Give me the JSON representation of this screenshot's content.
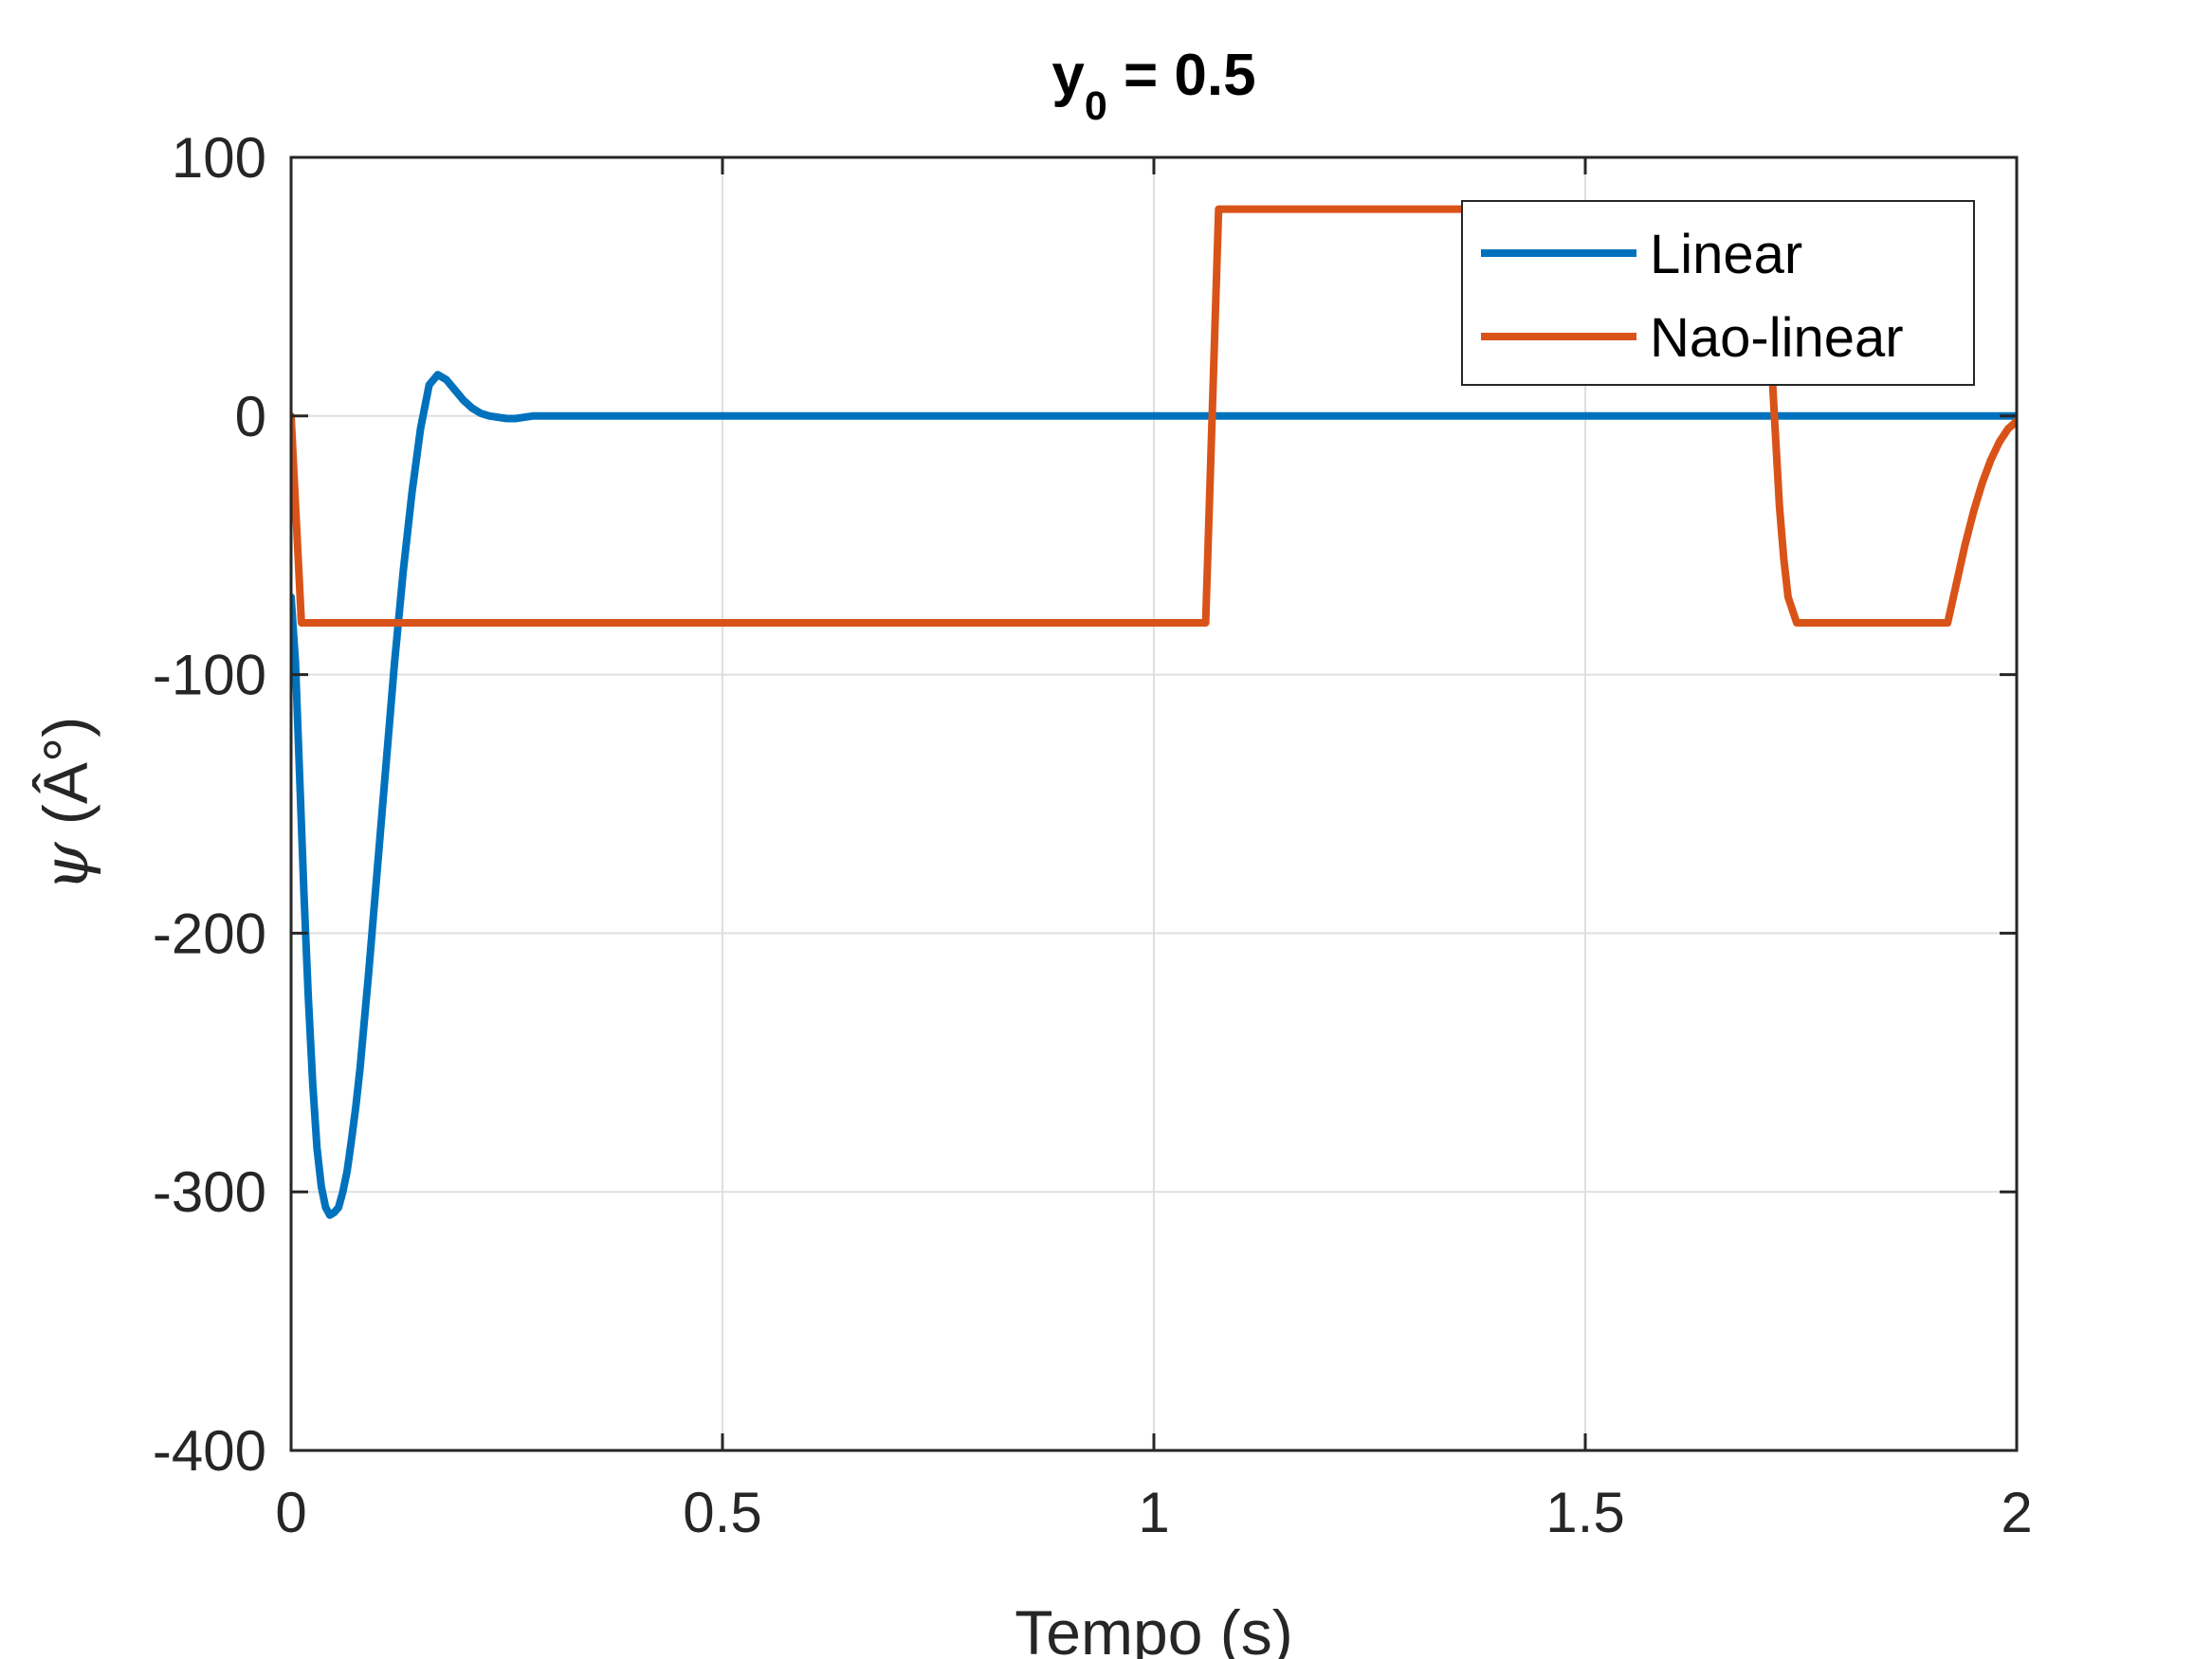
{
  "chart_data": {
    "type": "line",
    "title": {
      "main": "y",
      "sub": "0",
      "rest": " = 0.5"
    },
    "xlabel": "Tempo (s)",
    "ylabel": {
      "symbol": "ψ",
      "unit": " (Â°)"
    },
    "xlim": [
      0,
      2
    ],
    "ylim": [
      -400,
      100
    ],
    "xticks": [
      0,
      0.5,
      1,
      1.5,
      2
    ],
    "xtick_labels": [
      "0",
      "0.5",
      "1",
      "1.5",
      "2"
    ],
    "yticks": [
      -400,
      -300,
      -200,
      -100,
      0,
      100
    ],
    "ytick_labels": [
      "-400",
      "-300",
      "-200",
      "-100",
      "0",
      "100"
    ],
    "grid": true,
    "legend_position": "top-right",
    "series": [
      {
        "name": "Linear",
        "color": "#0072BD",
        "x": [
          0,
          0.005,
          0.01,
          0.015,
          0.02,
          0.025,
          0.03,
          0.035,
          0.04,
          0.045,
          0.05,
          0.055,
          0.06,
          0.065,
          0.07,
          0.075,
          0.08,
          0.09,
          0.1,
          0.11,
          0.12,
          0.13,
          0.14,
          0.15,
          0.16,
          0.17,
          0.18,
          0.19,
          0.2,
          0.21,
          0.22,
          0.23,
          0.24,
          0.25,
          0.26,
          0.27,
          0.28,
          0.29,
          0.3,
          0.32,
          0.34,
          0.36,
          0.38,
          0.4,
          0.42,
          0.44,
          0.46,
          0.48,
          0.5,
          0.55,
          0.6,
          0.7,
          0.8,
          0.9,
          1.0,
          1.2,
          1.4,
          1.6,
          1.8,
          2.0
        ],
        "y": [
          -70,
          -95,
          -140,
          -185,
          -225,
          -258,
          -283,
          -298,
          -306,
          -309,
          -308,
          -306,
          -300,
          -292,
          -280,
          -267,
          -252,
          -215,
          -175,
          -135,
          -95,
          -60,
          -30,
          -5,
          12,
          16,
          14,
          10,
          6,
          3,
          1,
          0,
          -0.5,
          -1,
          -1,
          -0.5,
          0,
          0,
          0,
          0,
          0,
          0,
          0,
          0,
          0,
          0,
          0,
          0,
          0,
          0,
          0,
          0,
          0,
          0,
          0,
          0,
          0,
          0,
          0,
          0
        ]
      },
      {
        "name": "Nao-linear",
        "color": "#D95319",
        "x": [
          0,
          0.012,
          1.06,
          1.075,
          1.71,
          1.715,
          1.72,
          1.725,
          1.73,
          1.735,
          1.745,
          1.92,
          1.93,
          1.94,
          1.95,
          1.96,
          1.97,
          1.98,
          1.99,
          2.0
        ],
        "y": [
          0,
          -80,
          -80,
          80,
          80,
          25,
          -5,
          -35,
          -55,
          -70,
          -80,
          -80,
          -65,
          -50,
          -37,
          -26,
          -17,
          -10,
          -5,
          -2
        ]
      }
    ]
  }
}
